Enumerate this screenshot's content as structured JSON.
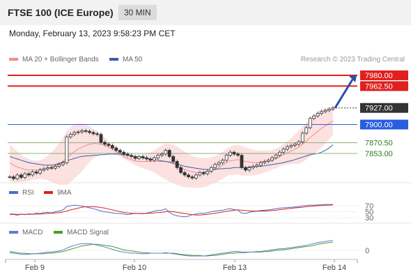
{
  "header": {
    "title": "FTSE 100 (ICE Europe)",
    "timeframe": "30 MIN"
  },
  "timestamp": "Monday, February 13, 2023 9:58:23 PM CET",
  "main_legend": [
    {
      "label": "MA 20 + Bollinger Bands",
      "color": "#f28b8b"
    },
    {
      "label": "MA 50",
      "color": "#3b5ea8"
    }
  ],
  "credit": "Research © 2023 Trading Central",
  "rsi_legend": [
    {
      "label": "RSI",
      "color": "#4a6fc7"
    },
    {
      "label": "9MA",
      "color": "#e0201e"
    }
  ],
  "macd_legend": [
    {
      "label": "MACD",
      "color": "#5a7fd6"
    },
    {
      "label": "MACD Signal",
      "color": "#4f9a28"
    }
  ],
  "chart_data": [
    {
      "type": "candlestick",
      "title": "FTSE 100 (ICE Europe)",
      "timeframe": "30 MIN",
      "x_ticks": [
        "Feb 9",
        "Feb 10",
        "Feb 13",
        "Feb 14"
      ],
      "ylim": [
        7795,
        7990
      ],
      "price_path": [
        7815,
        7812,
        7818,
        7814,
        7820,
        7818,
        7823,
        7821,
        7826,
        7828,
        7830,
        7829,
        7832,
        7835,
        7838,
        7880,
        7884,
        7887,
        7888,
        7890,
        7889,
        7887,
        7885,
        7884,
        7871,
        7868,
        7866,
        7862,
        7858,
        7855,
        7852,
        7850,
        7848,
        7845,
        7848,
        7846,
        7844,
        7842,
        7846,
        7850,
        7852,
        7858,
        7848,
        7840,
        7830,
        7822,
        7818,
        7815,
        7813,
        7818,
        7822,
        7820,
        7824,
        7830,
        7835,
        7838,
        7842,
        7850,
        7855,
        7852,
        7850,
        7830,
        7826,
        7830,
        7832,
        7834,
        7838,
        7840,
        7842,
        7846,
        7850,
        7855,
        7860,
        7864,
        7866,
        7868,
        7872,
        7886,
        7895,
        7910,
        7914,
        7918,
        7921,
        7923,
        7925,
        7927
      ],
      "ma20_path": [
        7838,
        7834,
        7831,
        7829,
        7827,
        7826,
        7826,
        7826,
        7827,
        7828,
        7829,
        7831,
        7833,
        7836,
        7840,
        7846,
        7851,
        7856,
        7860,
        7863,
        7866,
        7868,
        7869,
        7869,
        7868,
        7866,
        7863,
        7860,
        7856,
        7852,
        7848,
        7845,
        7843,
        7841,
        7840,
        7840,
        7840,
        7840,
        7840,
        7840,
        7840,
        7840,
        7838,
        7836,
        7833,
        7830,
        7827,
        7825,
        7823,
        7822,
        7822,
        7822,
        7823,
        7825,
        7827,
        7830,
        7834,
        7838,
        7841,
        7842,
        7843,
        7841,
        7840,
        7839,
        7838,
        7838,
        7839,
        7840,
        7841,
        7843,
        7845,
        7848,
        7851,
        7854,
        7857,
        7860,
        7863,
        7868,
        7873,
        7879,
        7884,
        7889,
        7894,
        7898,
        7902,
        7906
      ],
      "boll_upper_path": [
        7868,
        7862,
        7856,
        7851,
        7847,
        7844,
        7842,
        7841,
        7842,
        7845,
        7849,
        7855,
        7862,
        7870,
        7878,
        7890,
        7896,
        7900,
        7902,
        7902,
        7900,
        7897,
        7893,
        7889,
        7884,
        7879,
        7873,
        7867,
        7861,
        7856,
        7852,
        7849,
        7848,
        7848,
        7849,
        7851,
        7853,
        7855,
        7858,
        7862,
        7866,
        7869,
        7869,
        7867,
        7864,
        7860,
        7856,
        7852,
        7849,
        7847,
        7846,
        7846,
        7846,
        7847,
        7849,
        7852,
        7856,
        7860,
        7864,
        7866,
        7867,
        7865,
        7863,
        7861,
        7859,
        7858,
        7858,
        7858,
        7858,
        7859,
        7861,
        7864,
        7868,
        7873,
        7878,
        7884,
        7890,
        7897,
        7903,
        7910,
        7916,
        7921,
        7925,
        7927,
        7928,
        7929
      ],
      "boll_lower_path": [
        7808,
        7806,
        7806,
        7807,
        7807,
        7808,
        7810,
        7811,
        7812,
        7811,
        7809,
        7807,
        7804,
        7802,
        7802,
        7802,
        7806,
        7812,
        7818,
        7824,
        7832,
        7839,
        7845,
        7849,
        7852,
        7853,
        7853,
        7853,
        7851,
        7848,
        7844,
        7841,
        7838,
        7834,
        7831,
        7829,
        7827,
        7825,
        7822,
        7818,
        7814,
        7811,
        7807,
        7805,
        7802,
        7800,
        7798,
        7798,
        7797,
        7797,
        7798,
        7798,
        7800,
        7803,
        7805,
        7808,
        7812,
        7816,
        7818,
        7818,
        7819,
        7817,
        7817,
        7817,
        7817,
        7818,
        7820,
        7822,
        7824,
        7827,
        7829,
        7832,
        7834,
        7835,
        7836,
        7836,
        7836,
        7839,
        7843,
        7848,
        7852,
        7857,
        7863,
        7869,
        7876,
        7883
      ],
      "ma50_path": [
        7848,
        7846,
        7844,
        7842,
        7840,
        7838,
        7837,
        7836,
        7835,
        7834,
        7834,
        7834,
        7835,
        7837,
        7839,
        7841,
        7843,
        7845,
        7847,
        7848,
        7849,
        7849,
        7850,
        7850,
        7851,
        7851,
        7852,
        7852,
        7852,
        7852,
        7851,
        7850,
        7849,
        7848,
        7847,
        7846,
        7845,
        7844,
        7843,
        7842,
        7841,
        7840,
        7839,
        7838,
        7836,
        7834,
        7832,
        7831,
        7830,
        7829,
        7828,
        7827,
        7827,
        7827,
        7827,
        7828,
        7828,
        7829,
        7829,
        7830,
        7830,
        7830,
        7830,
        7831,
        7831,
        7832,
        7832,
        7833,
        7834,
        7835,
        7836,
        7837,
        7838,
        7840,
        7841,
        7843,
        7845,
        7847,
        7849,
        7851,
        7852,
        7853,
        7855,
        7858,
        7862,
        7867
      ],
      "horizontal_levels": [
        {
          "label": "7980.00",
          "value": 7980.0,
          "color": "#e0201e",
          "style": "resistance"
        },
        {
          "label": "7962.50",
          "value": 7962.5,
          "color": "#e0201e",
          "style": "resistance"
        },
        {
          "label": "7927.00",
          "value": 7927.0,
          "color": "#333333",
          "style": "last-price"
        },
        {
          "label": "7900.00",
          "value": 7900.0,
          "color": "#2a5ee0",
          "style": "pivot"
        },
        {
          "label": "7870.50",
          "value": 7870.5,
          "color": "#2b7a1e",
          "style": "support"
        },
        {
          "label": "7853.00",
          "value": 7853.0,
          "color": "#2b7a1e",
          "style": "support"
        }
      ],
      "projection": {
        "from": 7927,
        "to": 7980,
        "direction": "up"
      }
    },
    {
      "type": "line",
      "title": "RSI",
      "ylim": [
        20,
        80
      ],
      "levels": [
        "70",
        "50",
        "30"
      ],
      "series": [
        {
          "name": "RSI",
          "color": "#4a6fc7",
          "values": [
            40,
            41,
            38,
            42,
            40,
            43,
            41,
            45,
            44,
            47,
            48,
            46,
            50,
            52,
            56,
            68,
            70,
            72,
            71,
            69,
            66,
            63,
            60,
            56,
            52,
            50,
            48,
            46,
            44,
            44,
            42,
            40,
            42,
            45,
            44,
            43,
            45,
            48,
            52,
            54,
            55,
            60,
            48,
            40,
            36,
            34,
            33,
            35,
            40,
            42,
            45,
            44,
            47,
            50,
            52,
            54,
            55,
            58,
            60,
            57,
            55,
            45,
            44,
            48,
            50,
            52,
            54,
            55,
            56,
            58,
            60,
            62,
            63,
            64,
            65,
            66,
            67,
            70,
            71,
            72,
            72,
            73,
            73,
            74,
            74,
            74
          ]
        },
        {
          "name": "9MA",
          "color": "#e0201e",
          "values": [
            42,
            42,
            41,
            41,
            41,
            41,
            41,
            42,
            42,
            43,
            44,
            45,
            46,
            47,
            49,
            52,
            56,
            59,
            62,
            65,
            67,
            67,
            67,
            66,
            64,
            62,
            59,
            56,
            53,
            50,
            48,
            46,
            45,
            44,
            44,
            44,
            44,
            45,
            46,
            47,
            48,
            50,
            51,
            50,
            48,
            46,
            44,
            42,
            40,
            39,
            39,
            40,
            41,
            43,
            45,
            47,
            49,
            51,
            53,
            55,
            56,
            55,
            54,
            53,
            52,
            52,
            52,
            52,
            53,
            54,
            55,
            57,
            58,
            60,
            61,
            63,
            64,
            65,
            67,
            68,
            69,
            70,
            71,
            72,
            72,
            73
          ]
        }
      ]
    },
    {
      "type": "line",
      "title": "MACD",
      "ylim": [
        -25,
        25
      ],
      "levels": [
        "0"
      ],
      "series": [
        {
          "name": "MACD",
          "color": "#5a7fd6",
          "values": [
            -4,
            -5,
            -6,
            -7,
            -7,
            -7,
            -6,
            -6,
            -5,
            -4,
            -3,
            -3,
            -2,
            -1,
            1,
            4,
            7,
            9,
            11,
            12,
            12,
            12,
            11,
            9,
            8,
            6,
            4,
            2,
            0,
            -2,
            -3,
            -4,
            -5,
            -5,
            -6,
            -6,
            -6,
            -5,
            -5,
            -5,
            -5,
            -4,
            -5,
            -6,
            -7,
            -8,
            -9,
            -10,
            -10,
            -10,
            -10,
            -10,
            -9,
            -8,
            -7,
            -6,
            -5,
            -4,
            -3,
            -2,
            -2,
            -3,
            -3,
            -3,
            -3,
            -2,
            -2,
            -1,
            0,
            1,
            2,
            3,
            3,
            4,
            5,
            6,
            7,
            8,
            9,
            11,
            12,
            14,
            15,
            16,
            17,
            18
          ]
        },
        {
          "name": "MACD Signal",
          "color": "#4f9a28",
          "values": [
            -2,
            -3,
            -4,
            -5,
            -5,
            -6,
            -6,
            -6,
            -6,
            -6,
            -5,
            -5,
            -4,
            -3,
            -2,
            0,
            2,
            4,
            6,
            8,
            9,
            10,
            11,
            11,
            10,
            9,
            8,
            7,
            5,
            3,
            1,
            0,
            -1,
            -2,
            -3,
            -4,
            -4,
            -5,
            -5,
            -5,
            -5,
            -5,
            -5,
            -5,
            -6,
            -7,
            -8,
            -8,
            -9,
            -9,
            -9,
            -10,
            -10,
            -9,
            -9,
            -8,
            -7,
            -6,
            -5,
            -5,
            -4,
            -4,
            -4,
            -3,
            -3,
            -3,
            -3,
            -2,
            -2,
            -1,
            0,
            1,
            1,
            2,
            3,
            4,
            5,
            6,
            7,
            8,
            9,
            11,
            12,
            13,
            14,
            15
          ]
        }
      ]
    }
  ]
}
